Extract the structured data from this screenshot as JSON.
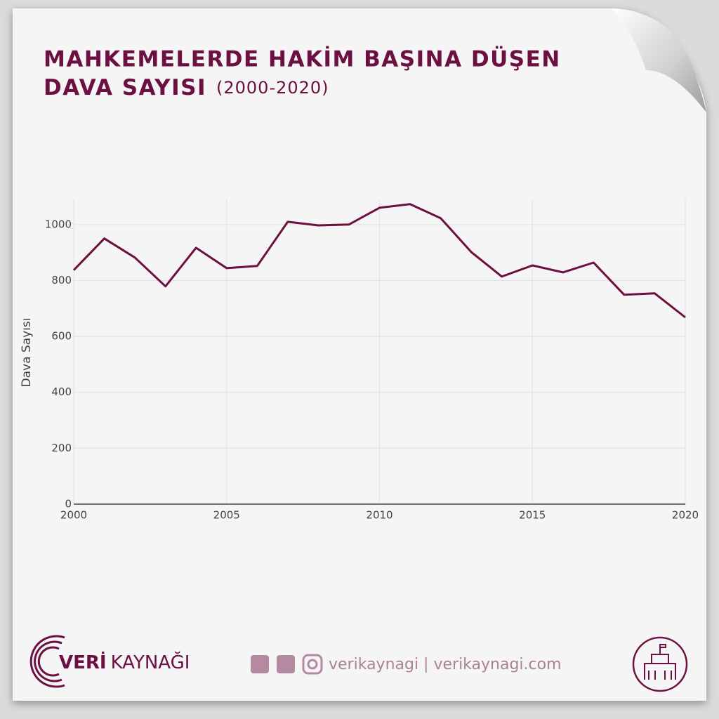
{
  "chart_data": {
    "type": "line",
    "title": [
      "MAHKEMELERDE HAKİM BAŞINA DÜŞEN",
      "DAVA SAYISI"
    ],
    "subtitle": "(2000-2020)",
    "y_label": "Dava Sayısı",
    "x": [
      2000,
      2001,
      2002,
      2003,
      2004,
      2005,
      2006,
      2007,
      2008,
      2009,
      2010,
      2011,
      2012,
      2013,
      2014,
      2015,
      2016,
      2017,
      2018,
      2019,
      2020
    ],
    "values": [
      837,
      950,
      882,
      779,
      917,
      844,
      852,
      1010,
      997,
      1000,
      1060,
      1073,
      1023,
      902,
      814,
      854,
      829,
      864,
      749,
      754,
      668
    ],
    "color": "#6d0f3f",
    "xlim": [
      2000,
      2020
    ],
    "xticks": [
      2000,
      2005,
      2010,
      2015,
      2020
    ],
    "ylim": [
      0,
      1090
    ],
    "yticks": [
      0,
      200,
      400,
      600,
      800,
      1000
    ],
    "grid": true
  },
  "footer": {
    "brand_bold": "VERİ",
    "brand": "KAYNAĞI",
    "social": "verikaynagi | verikaynagi.com"
  }
}
